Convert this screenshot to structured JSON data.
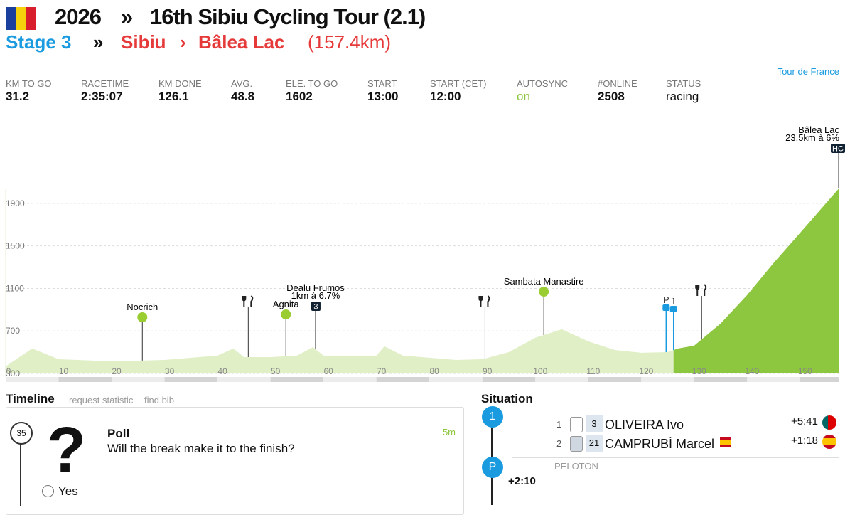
{
  "header": {
    "year": "2026",
    "sep": "»",
    "race": "16th Sibiu Cycling Tour (2.1)",
    "stage": "Stage 3",
    "stage_sep": "»",
    "from": "Sibiu",
    "arrow": "›",
    "to": "Bâlea Lac",
    "distance": "(157.4km)"
  },
  "link": "Tour de France",
  "stats": [
    {
      "label": "KM TO GO",
      "value": "31.2"
    },
    {
      "label": "RACETIME",
      "value": "2:35:07"
    },
    {
      "label": "KM DONE",
      "value": "126.1"
    },
    {
      "label": "AVG.",
      "value": "48.8"
    },
    {
      "label": "ELE. TO GO",
      "value": "1602"
    },
    {
      "label": "START",
      "value": "13:00"
    },
    {
      "label": "START (CET)",
      "value": "12:00"
    },
    {
      "label": "AUTOSYNC",
      "value": "on"
    },
    {
      "label": "#ONLINE",
      "value": "2508"
    },
    {
      "label": "STATUS",
      "value": "racing"
    }
  ],
  "profile": {
    "xlim": [
      0,
      157.4
    ],
    "ylim": [
      300,
      2100
    ],
    "xticks": [
      0,
      10,
      20,
      30,
      40,
      50,
      60,
      70,
      80,
      90,
      100,
      110,
      120,
      130,
      140,
      150
    ],
    "yticks": [
      300,
      700,
      1100,
      1500,
      1900
    ],
    "km_done": 126.1,
    "x": [
      0,
      5,
      10,
      20,
      30,
      40,
      43,
      45,
      50,
      55,
      58,
      60,
      70,
      71.5,
      75,
      80,
      85,
      90,
      95,
      100,
      105,
      110,
      115,
      120,
      125,
      127,
      130,
      135,
      140,
      145,
      150,
      157.4
    ],
    "values": [
      367,
      535,
      434,
      414,
      427,
      468,
      535,
      454,
      454,
      468,
      548,
      468,
      468,
      555,
      468,
      448,
      427,
      434,
      501,
      636,
      716,
      602,
      521,
      495,
      501,
      535,
      562,
      770,
      1038,
      1340,
      1622,
      2045
    ],
    "markers": [
      {
        "type": "town",
        "km": 25.8,
        "name": "Nocrich"
      },
      {
        "type": "feed",
        "km": 45.8
      },
      {
        "type": "town",
        "km": 52.9,
        "name": "Agnita"
      },
      {
        "type": "climb",
        "km": 58.5,
        "name": "Dealu Frumos",
        "detail": "1km à 6.7%",
        "badge": "3"
      },
      {
        "type": "feed",
        "km": 90.5
      },
      {
        "type": "town",
        "km": 101.6,
        "name": "Sambata Manastire"
      },
      {
        "type": "sprint",
        "km": 124.7,
        "name": "P"
      },
      {
        "type": "sprint",
        "km": 126.1,
        "name": "1"
      },
      {
        "type": "feed",
        "km": 131.4
      },
      {
        "type": "climb",
        "km": 157.4,
        "name": "Bâlea Lac",
        "detail": "23.5km à 6%",
        "badge": "HC"
      }
    ]
  },
  "timeline": {
    "title": "Timeline",
    "links": [
      "request statistic",
      "find bib"
    ],
    "item": {
      "km": "35",
      "icon": "?",
      "title": "Poll",
      "question": "Will the break make it to the finish?",
      "time": "5m",
      "option": "Yes"
    }
  },
  "situation": {
    "title": "Situation",
    "groups": [
      {
        "badge": "1",
        "riders": [
          {
            "rank": "1",
            "bib": "3",
            "name": "OLIVEIRA Ivo",
            "gap": "+5:41"
          },
          {
            "rank": "2",
            "bib": "21",
            "name": "CAMPRUBÍ Marcel",
            "gap": "+1:18"
          }
        ]
      },
      {
        "badge": "P",
        "label": "PELOTON",
        "gap": "+2:10"
      }
    ]
  }
}
